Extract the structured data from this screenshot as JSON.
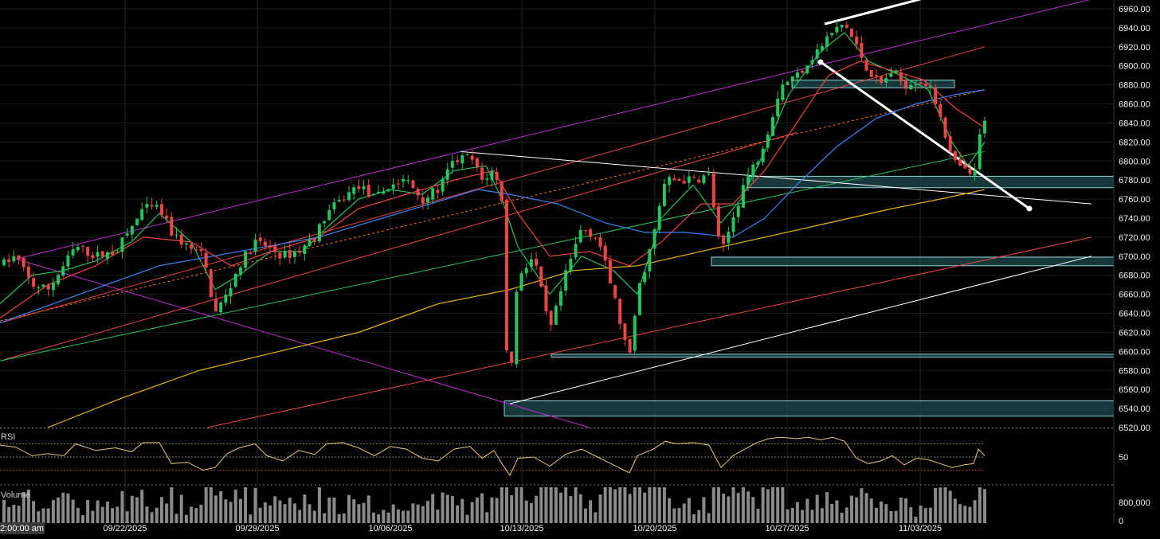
{
  "chart_data": {
    "type": "candlestick",
    "price_axis": {
      "range": [
        6520,
        6970
      ],
      "ticks": [
        "6960.00",
        "6940.00",
        "6920.00",
        "6900.00",
        "6880.00",
        "6860.00",
        "6840.00",
        "6820.00",
        "6800.00",
        "6780.00",
        "6760.00",
        "6740.00",
        "6720.00",
        "6700.00",
        "6680.00",
        "6660.00",
        "6640.00",
        "6620.00",
        "6600.00",
        "6580.00",
        "6560.00",
        "6540.00",
        "6520.00"
      ]
    },
    "x_axis": {
      "start_label": "2:00:00 am",
      "date_ticks": [
        "09/22/2025",
        "09/29/2025",
        "10/06/2025",
        "10/13/2025",
        "10/20/2025",
        "10/27/2025",
        "11/03/2025"
      ]
    },
    "price_path": [
      [
        0,
        6690
      ],
      [
        20,
        6700
      ],
      [
        40,
        6670
      ],
      [
        60,
        6665
      ],
      [
        80,
        6690
      ],
      [
        95,
        6710
      ],
      [
        120,
        6700
      ],
      [
        145,
        6705
      ],
      [
        165,
        6730
      ],
      [
        180,
        6750
      ],
      [
        200,
        6750
      ],
      [
        215,
        6725
      ],
      [
        235,
        6710
      ],
      [
        255,
        6700
      ],
      [
        270,
        6640
      ],
      [
        285,
        6660
      ],
      [
        300,
        6690
      ],
      [
        320,
        6715
      ],
      [
        335,
        6710
      ],
      [
        355,
        6700
      ],
      [
        375,
        6705
      ],
      [
        395,
        6720
      ],
      [
        410,
        6745
      ],
      [
        430,
        6760
      ],
      [
        450,
        6775
      ],
      [
        470,
        6760
      ],
      [
        490,
        6775
      ],
      [
        510,
        6780
      ],
      [
        530,
        6760
      ],
      [
        550,
        6770
      ],
      [
        570,
        6800
      ],
      [
        590,
        6805
      ],
      [
        605,
        6780
      ],
      [
        620,
        6790
      ],
      [
        630,
        6760
      ],
      [
        638,
        6545
      ],
      [
        650,
        6680
      ],
      [
        670,
        6700
      ],
      [
        690,
        6620
      ],
      [
        710,
        6680
      ],
      [
        730,
        6730
      ],
      [
        750,
        6720
      ],
      [
        770,
        6660
      ],
      [
        790,
        6590
      ],
      [
        800,
        6660
      ],
      [
        820,
        6720
      ],
      [
        835,
        6780
      ],
      [
        850,
        6780
      ],
      [
        870,
        6780
      ],
      [
        890,
        6785
      ],
      [
        905,
        6700
      ],
      [
        920,
        6740
      ],
      [
        935,
        6780
      ],
      [
        950,
        6800
      ],
      [
        965,
        6835
      ],
      [
        980,
        6880
      ],
      [
        1000,
        6890
      ],
      [
        1015,
        6905
      ],
      [
        1030,
        6920
      ],
      [
        1045,
        6935
      ],
      [
        1060,
        6945
      ],
      [
        1075,
        6920
      ],
      [
        1090,
        6895
      ],
      [
        1105,
        6880
      ],
      [
        1120,
        6895
      ],
      [
        1135,
        6880
      ],
      [
        1150,
        6885
      ],
      [
        1165,
        6880
      ],
      [
        1180,
        6850
      ],
      [
        1195,
        6800
      ],
      [
        1210,
        6790
      ],
      [
        1222,
        6780
      ],
      [
        1228,
        6820
      ],
      [
        1236,
        6840
      ]
    ],
    "candle_count": 200,
    "moving_averages": [
      {
        "color": "#22c55e",
        "points": [
          [
            0,
            6650
          ],
          [
            40,
            6680
          ],
          [
            80,
            6685
          ],
          [
            120,
            6695
          ],
          [
            165,
            6715
          ],
          [
            200,
            6745
          ],
          [
            240,
            6715
          ],
          [
            270,
            6665
          ],
          [
            300,
            6680
          ],
          [
            340,
            6705
          ],
          [
            380,
            6705
          ],
          [
            410,
            6730
          ],
          [
            450,
            6760
          ],
          [
            490,
            6770
          ],
          [
            530,
            6765
          ],
          [
            570,
            6790
          ],
          [
            610,
            6795
          ],
          [
            630,
            6760
          ],
          [
            650,
            6710
          ],
          [
            690,
            6660
          ],
          [
            730,
            6700
          ],
          [
            770,
            6685
          ],
          [
            800,
            6660
          ],
          [
            830,
            6740
          ],
          [
            870,
            6775
          ],
          [
            905,
            6735
          ],
          [
            930,
            6760
          ],
          [
            960,
            6810
          ],
          [
            990,
            6870
          ],
          [
            1030,
            6915
          ],
          [
            1060,
            6935
          ],
          [
            1090,
            6905
          ],
          [
            1130,
            6890
          ],
          [
            1165,
            6875
          ],
          [
            1195,
            6820
          ],
          [
            1215,
            6795
          ],
          [
            1236,
            6820
          ]
        ]
      },
      {
        "color": "#ef4444",
        "points": [
          [
            0,
            6635
          ],
          [
            60,
            6670
          ],
          [
            120,
            6690
          ],
          [
            180,
            6720
          ],
          [
            240,
            6715
          ],
          [
            290,
            6690
          ],
          [
            340,
            6705
          ],
          [
            400,
            6720
          ],
          [
            450,
            6750
          ],
          [
            510,
            6765
          ],
          [
            570,
            6780
          ],
          [
            620,
            6790
          ],
          [
            650,
            6745
          ],
          [
            690,
            6700
          ],
          [
            740,
            6705
          ],
          [
            790,
            6690
          ],
          [
            830,
            6715
          ],
          [
            880,
            6755
          ],
          [
            920,
            6755
          ],
          [
            960,
            6790
          ],
          [
            1000,
            6840
          ],
          [
            1040,
            6890
          ],
          [
            1080,
            6905
          ],
          [
            1120,
            6895
          ],
          [
            1160,
            6885
          ],
          [
            1200,
            6855
          ],
          [
            1236,
            6835
          ]
        ]
      },
      {
        "color": "#3b82f6",
        "points": [
          [
            0,
            6630
          ],
          [
            100,
            6660
          ],
          [
            200,
            6690
          ],
          [
            300,
            6705
          ],
          [
            400,
            6720
          ],
          [
            500,
            6745
          ],
          [
            600,
            6770
          ],
          [
            640,
            6765
          ],
          [
            700,
            6755
          ],
          [
            760,
            6735
          ],
          [
            810,
            6725
          ],
          [
            860,
            6725
          ],
          [
            920,
            6720
          ],
          [
            960,
            6740
          ],
          [
            1000,
            6775
          ],
          [
            1050,
            6815
          ],
          [
            1100,
            6845
          ],
          [
            1150,
            6860
          ],
          [
            1200,
            6870
          ],
          [
            1236,
            6875
          ]
        ]
      },
      {
        "color": "#eab308",
        "points": [
          [
            60,
            6520
          ],
          [
            150,
            6550
          ],
          [
            250,
            6580
          ],
          [
            350,
            6600
          ],
          [
            450,
            6620
          ],
          [
            550,
            6650
          ],
          [
            640,
            6665
          ],
          [
            720,
            6685
          ],
          [
            800,
            6690
          ],
          [
            880,
            6705
          ],
          [
            960,
            6720
          ],
          [
            1040,
            6735
          ],
          [
            1120,
            6750
          ],
          [
            1180,
            6760
          ],
          [
            1236,
            6770
          ]
        ]
      }
    ],
    "trend_lines": [
      {
        "color": "#c026d3",
        "p1": [
          20,
          6697
        ],
        "p2": [
          1370,
          6970
        ]
      },
      {
        "color": "#c026d3",
        "p1": [
          20,
          6697
        ],
        "p2": [
          740,
          6520
        ]
      },
      {
        "color": "#ef4444",
        "p1": [
          0,
          6630
        ],
        "p2": [
          1236,
          6920
        ]
      },
      {
        "color": "#ef4444",
        "p1": [
          0,
          6590
        ],
        "p2": [
          1000,
          6830
        ]
      },
      {
        "color": "#ef4444",
        "p1": [
          260,
          6520
        ],
        "p2": [
          1370,
          6720
        ]
      },
      {
        "color": "#f97316",
        "p1": [
          0,
          6632
        ],
        "p2": [
          1236,
          6875
        ],
        "dashed": true
      },
      {
        "color": "#22c55e",
        "p1": [
          0,
          6590
        ],
        "p2": [
          1236,
          6810
        ]
      },
      {
        "color": "#ffffff",
        "p1": [
          578,
          6810
        ],
        "p2": [
          1370,
          6755
        ]
      },
      {
        "color": "#ffffff",
        "p1": [
          640,
          6545
        ],
        "p2": [
          1370,
          6700
        ]
      },
      {
        "color": "#ffffff",
        "p1": [
          1035,
          6944
        ],
        "p2": [
          1155,
          6970
        ],
        "thick": true
      },
      {
        "color": "#ffffff",
        "p1": [
          1030,
          6904
        ],
        "p2": [
          1292,
          6750
        ],
        "thick": true
      }
    ],
    "zones": [
      {
        "x1": 994,
        "x2": 1198,
        "y1": 6877,
        "y2": 6885
      },
      {
        "x1": 938,
        "x2": 1398,
        "y1": 6772,
        "y2": 6784
      },
      {
        "x1": 893,
        "x2": 1398,
        "y1": 6690,
        "y2": 6699
      },
      {
        "x1": 692,
        "x2": 1398,
        "y1": 6594,
        "y2": 6597
      },
      {
        "x1": 633,
        "x2": 1398,
        "y1": 6532,
        "y2": 6548
      }
    ],
    "rsi": {
      "title": "RSI",
      "tick": "50",
      "levels": [
        70,
        50,
        30
      ],
      "points": [
        [
          0,
          68
        ],
        [
          20,
          65
        ],
        [
          40,
          52
        ],
        [
          60,
          55
        ],
        [
          80,
          52
        ],
        [
          95,
          70
        ],
        [
          120,
          60
        ],
        [
          145,
          64
        ],
        [
          165,
          58
        ],
        [
          180,
          72
        ],
        [
          200,
          72
        ],
        [
          215,
          40
        ],
        [
          235,
          42
        ],
        [
          255,
          30
        ],
        [
          270,
          34
        ],
        [
          285,
          55
        ],
        [
          300,
          64
        ],
        [
          320,
          70
        ],
        [
          335,
          52
        ],
        [
          355,
          44
        ],
        [
          375,
          60
        ],
        [
          395,
          54
        ],
        [
          410,
          70
        ],
        [
          430,
          72
        ],
        [
          450,
          64
        ],
        [
          470,
          52
        ],
        [
          490,
          66
        ],
        [
          510,
          62
        ],
        [
          530,
          48
        ],
        [
          550,
          44
        ],
        [
          570,
          62
        ],
        [
          590,
          66
        ],
        [
          605,
          48
        ],
        [
          620,
          60
        ],
        [
          630,
          40
        ],
        [
          640,
          22
        ],
        [
          650,
          48
        ],
        [
          670,
          50
        ],
        [
          690,
          36
        ],
        [
          710,
          54
        ],
        [
          730,
          62
        ],
        [
          750,
          50
        ],
        [
          770,
          38
        ],
        [
          790,
          26
        ],
        [
          800,
          52
        ],
        [
          820,
          62
        ],
        [
          835,
          74
        ],
        [
          850,
          70
        ],
        [
          870,
          72
        ],
        [
          890,
          68
        ],
        [
          905,
          34
        ],
        [
          920,
          52
        ],
        [
          935,
          62
        ],
        [
          950,
          72
        ],
        [
          965,
          78
        ],
        [
          980,
          80
        ],
        [
          1000,
          78
        ],
        [
          1015,
          80
        ],
        [
          1030,
          76
        ],
        [
          1045,
          80
        ],
        [
          1060,
          74
        ],
        [
          1075,
          48
        ],
        [
          1090,
          40
        ],
        [
          1105,
          44
        ],
        [
          1120,
          52
        ],
        [
          1135,
          38
        ],
        [
          1150,
          48
        ],
        [
          1165,
          46
        ],
        [
          1180,
          40
        ],
        [
          1195,
          34
        ],
        [
          1210,
          38
        ],
        [
          1222,
          40
        ],
        [
          1228,
          62
        ],
        [
          1236,
          52
        ]
      ]
    },
    "volume": {
      "title": "Volume",
      "ticks": [
        "800,000",
        "0"
      ],
      "max": 900000
    }
  }
}
